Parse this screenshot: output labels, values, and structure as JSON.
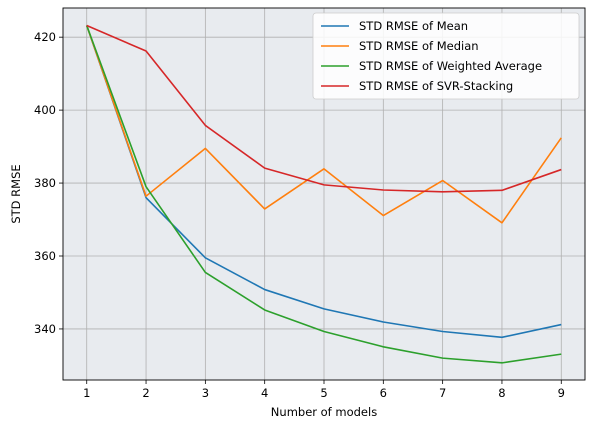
{
  "chart_data": {
    "type": "line",
    "title": "",
    "xlabel": "Number of models",
    "ylabel": "STD RMSE",
    "x": [
      1,
      2,
      3,
      4,
      5,
      6,
      7,
      8,
      9
    ],
    "xlim": [
      0.6,
      9.4
    ],
    "ylim": [
      326,
      428
    ],
    "xticks": [
      1,
      2,
      3,
      4,
      5,
      6,
      7,
      8,
      9
    ],
    "yticks": [
      340,
      360,
      380,
      400,
      420
    ],
    "grid": true,
    "legend_position": "top-right",
    "background_color": "#e8ebef",
    "grid_color": "#b0b0b0",
    "series": [
      {
        "name": "STD RMSE of Mean",
        "color": "#1f77b4",
        "values": [
          423.2,
          376.0,
          359.5,
          350.8,
          345.5,
          341.9,
          339.3,
          337.7,
          341.2
        ]
      },
      {
        "name": "STD RMSE of Median",
        "color": "#ff7f0e",
        "values": [
          423.2,
          376.4,
          389.5,
          372.9,
          383.9,
          371.1,
          380.7,
          369.1,
          392.4
        ]
      },
      {
        "name": "STD RMSE of Weighted Average",
        "color": "#2ca02c",
        "values": [
          423.2,
          379.0,
          355.5,
          345.2,
          339.3,
          335.1,
          332.0,
          330.7,
          333.1
        ]
      },
      {
        "name": "STD RMSE of SVR-Stacking",
        "color": "#d62728",
        "values": [
          423.2,
          416.2,
          395.8,
          384.1,
          379.5,
          378.1,
          377.6,
          378.0,
          383.7
        ]
      }
    ]
  }
}
